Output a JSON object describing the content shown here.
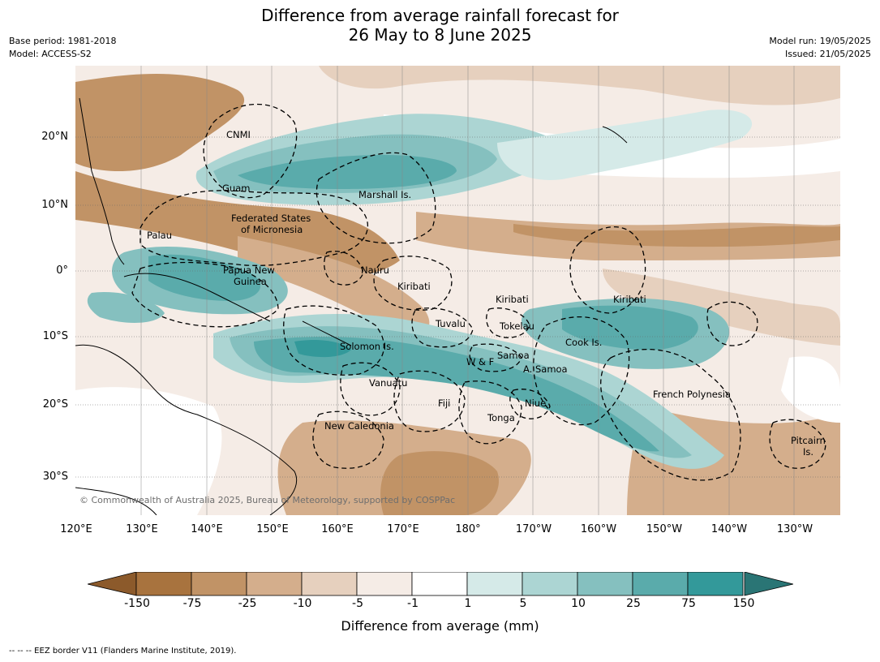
{
  "title": {
    "line1": "Difference from average rainfall forecast for",
    "line2": "26 May to 8 June 2025"
  },
  "meta": {
    "base_period": "Base period: 1981-2018",
    "model": "Model: ACCESS-S2",
    "model_run": "Model run: 19/05/2025",
    "issued": "Issued: 21/05/2025"
  },
  "map": {
    "lat_labels": [
      "20°N",
      "10°N",
      "0°",
      "10°S",
      "20°S",
      "30°S"
    ],
    "lon_labels": [
      "120°E",
      "130°E",
      "140°E",
      "150°E",
      "160°E",
      "170°E",
      "180°",
      "170°W",
      "160°W",
      "150°W",
      "140°W",
      "130°W"
    ],
    "copyright": "© Commonwealth of Australia 2025, Bureau of Meteorology, supported by COSPPac",
    "places": [
      "CNMI",
      "Guam",
      "Marshall Is.",
      "Federated States",
      "of Micronesia",
      "Palau",
      "Papua New",
      "Guinea",
      "Nauru",
      "Kiribati",
      "Kiribati",
      "Kiribati",
      "Tuvalu",
      "Tokelau",
      "Cook Is.",
      "Solomon Is.",
      "W & F",
      "Samoa",
      "A. Samoa",
      "Vanuatu",
      "Fiji",
      "Niue",
      "Tonga",
      "French Polynesia",
      "New Caledonia",
      "Pitcairn",
      "Is."
    ]
  },
  "colorbar": {
    "label": "Difference from average (mm)",
    "ticks": [
      "-150",
      "-75",
      "-25",
      "-10",
      "-5",
      "-1",
      "1",
      "5",
      "10",
      "25",
      "75",
      "150"
    ],
    "colors": [
      "#8c5a2b",
      "#a8733e",
      "#c19366",
      "#d4ae8c",
      "#e6d0be",
      "#f5ece6",
      "#ffffff",
      "#d5eae8",
      "#acd5d3",
      "#85c0bf",
      "#5aabab",
      "#33999a",
      "#2a7575"
    ]
  },
  "footer": "--  --  -- EEZ border V11 (Flanders Marine Institute, 2019)."
}
